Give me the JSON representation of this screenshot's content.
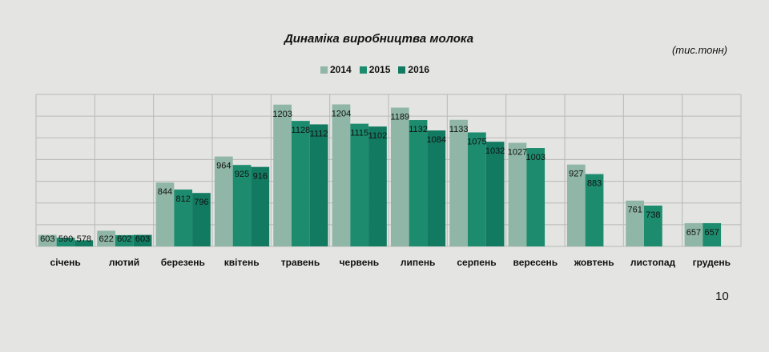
{
  "page_number": "10",
  "chart_data": {
    "type": "bar",
    "title": "Динаміка виробництва молока",
    "unit_label": "(тис.тонн)",
    "categories": [
      "січень",
      "лютий",
      "березень",
      "квітень",
      "травень",
      "червень",
      "липень",
      "серпень",
      "вересень",
      "жовтень",
      "листопад",
      "грудень"
    ],
    "series": [
      {
        "name": "2014",
        "color": "#8fb6a6",
        "values": [
          603,
          622,
          844,
          964,
          1203,
          1204,
          1189,
          1133,
          1027,
          927,
          761,
          657
        ]
      },
      {
        "name": "2015",
        "color": "#1d8b6e",
        "values": [
          590,
          602,
          812,
          925,
          1128,
          1115,
          1132,
          1075,
          1003,
          883,
          738,
          657
        ]
      },
      {
        "name": "2016",
        "color": "#127a61",
        "values": [
          578,
          603,
          796,
          916,
          1112,
          1102,
          1084,
          1032,
          null,
          null,
          null,
          null
        ]
      }
    ],
    "ylim": [
      550,
      1250
    ],
    "grid": true,
    "legend": "top-center",
    "xlabel": "",
    "ylabel": ""
  }
}
